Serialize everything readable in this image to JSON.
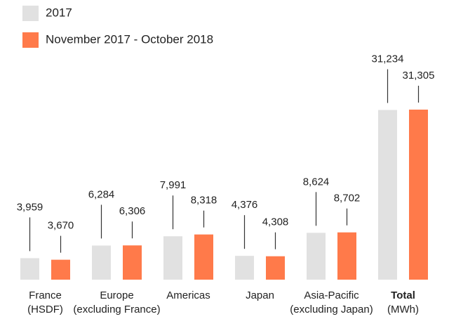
{
  "chart_data": {
    "type": "bar",
    "categories": [
      [
        "France",
        "(HSDF)"
      ],
      [
        "Europe",
        "(excluding France)"
      ],
      [
        "Americas"
      ],
      [
        "Japan"
      ],
      [
        "Asia-Pacific",
        "(excluding Japan)"
      ],
      [
        "Total",
        "(MWh)"
      ]
    ],
    "series": [
      {
        "name": "2017",
        "color": "#e1e1e1",
        "values": [
          3959,
          6284,
          7991,
          4376,
          8624,
          31234
        ],
        "value_labels": [
          "3,959",
          "6,284",
          "7,991",
          "4,376",
          "8,624",
          "31,234"
        ]
      },
      {
        "name": "November 2017 - October 2018",
        "color": "#ff7a4a",
        "values": [
          3670,
          6306,
          8318,
          4308,
          8702,
          31305
        ],
        "value_labels": [
          "3,670",
          "6,306",
          "8,318",
          "4,308",
          "8,702",
          "31,305"
        ]
      }
    ]
  }
}
